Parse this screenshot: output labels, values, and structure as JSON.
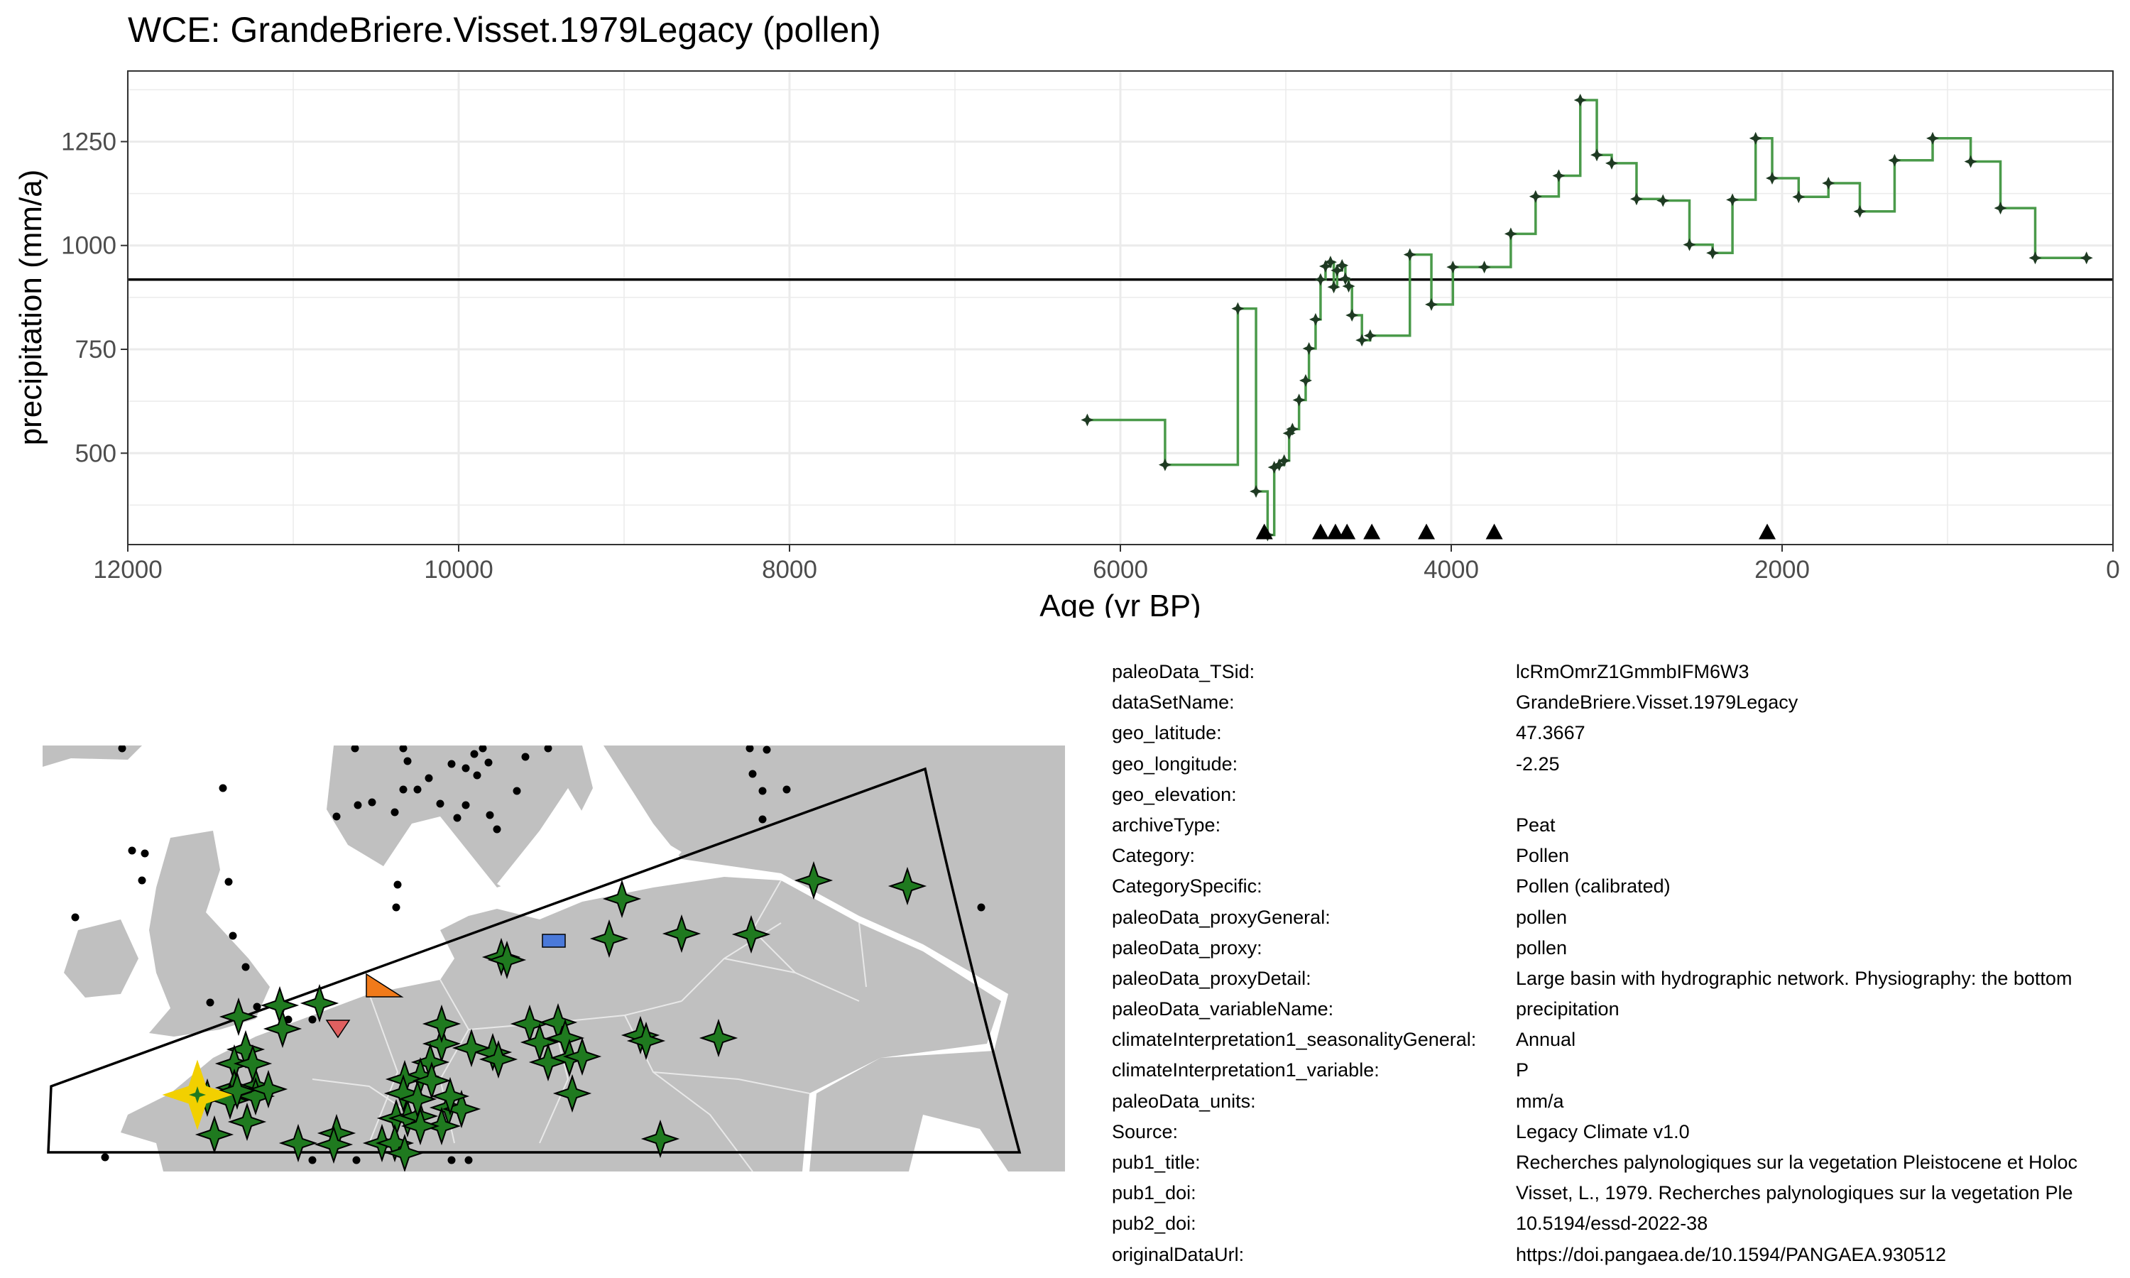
{
  "chart_data": {
    "type": "line",
    "title": "WCE: GrandeBriere.Visset.1979Legacy (pollen)",
    "xlabel": "Age (yr BP)",
    "ylabel": "precipitation (mm/a)",
    "xlim": [
      12000,
      0
    ],
    "ylim": [
      280,
      1420
    ],
    "x_ticks": [
      12000,
      10000,
      8000,
      6000,
      4000,
      2000,
      0
    ],
    "y_ticks": [
      500,
      750,
      1000,
      1250
    ],
    "grid": true,
    "step": true,
    "line_color": "#4a9a4a",
    "point_color": "#1e3a22",
    "reference_line": 918,
    "series": [
      {
        "name": "precipitation",
        "x": [
          6200,
          5730,
          5290,
          5180,
          5110,
          5070,
          5040,
          5010,
          4980,
          4960,
          4920,
          4880,
          4860,
          4820,
          4790,
          4760,
          4730,
          4710,
          4690,
          4660,
          4640,
          4620,
          4600,
          4540,
          4490,
          4250,
          4120,
          3990,
          3800,
          3640,
          3490,
          3350,
          3220,
          3120,
          3030,
          2880,
          2720,
          2560,
          2420,
          2300,
          2160,
          2060,
          1900,
          1720,
          1530,
          1320,
          1090,
          860,
          680,
          470,
          160
        ],
        "y": [
          580,
          472,
          848,
          408,
          303,
          466,
          472,
          482,
          548,
          558,
          628,
          675,
          752,
          822,
          918,
          950,
          960,
          900,
          940,
          952,
          920,
          902,
          832,
          772,
          783,
          978,
          858,
          948,
          948,
          1028,
          1118,
          1168,
          1350,
          1218,
          1198,
          1112,
          1108,
          1002,
          982,
          1110,
          1258,
          1162,
          1117,
          1150,
          1082,
          1205,
          1258,
          1202,
          1090,
          970,
          970
        ]
      }
    ],
    "markers": {
      "label": "triangle",
      "x": [
        5130,
        4790,
        4700,
        4630,
        4480,
        4150,
        3740,
        2090
      ]
    }
  },
  "map": {
    "symbol_colors": {
      "land": "#c0c0c0",
      "record": "#1f7a1f",
      "focus": "#f2d000",
      "square": "#4a79d9",
      "triangle_up": "#f07a1a",
      "triangle_down": "#e06060",
      "other": "#000000"
    }
  },
  "metadata": [
    {
      "key": "paleoData_TSid:",
      "value": "lcRmOmrZ1GmmbIFM6W3"
    },
    {
      "key": "dataSetName:",
      "value": "GrandeBriere.Visset.1979Legacy"
    },
    {
      "key": "geo_latitude:",
      "value": "47.3667"
    },
    {
      "key": "geo_longitude:",
      "value": "-2.25"
    },
    {
      "key": "geo_elevation:",
      "value": ""
    },
    {
      "key": "archiveType:",
      "value": "Peat"
    },
    {
      "key": "Category:",
      "value": "Pollen"
    },
    {
      "key": "CategorySpecific:",
      "value": "Pollen (calibrated)"
    },
    {
      "key": "paleoData_proxyGeneral:",
      "value": "pollen"
    },
    {
      "key": "paleoData_proxy:",
      "value": "pollen"
    },
    {
      "key": "paleoData_proxyDetail:",
      "value": "Large basin with hydrographic network. Physiography: the bottom"
    },
    {
      "key": "paleoData_variableName:",
      "value": "precipitation"
    },
    {
      "key": "climateInterpretation1_seasonalityGeneral:",
      "value": "Annual"
    },
    {
      "key": "climateInterpretation1_variable:",
      "value": "P"
    },
    {
      "key": "paleoData_units:",
      "value": "mm/a"
    },
    {
      "key": "Source:",
      "value": "Legacy Climate v1.0"
    },
    {
      "key": "pub1_title:",
      "value": "Recherches palynologiques sur la vegetation Pleistocene et Holoc"
    },
    {
      "key": "pub1_doi:",
      "value": "Visset, L., 1979. Recherches palynologiques sur la vegetation Ple"
    },
    {
      "key": "pub2_doi:",
      "value": "10.5194/essd-2022-38"
    },
    {
      "key": "originalDataUrl:",
      "value": "https://doi.pangaea.de/10.1594/PANGAEA.930512"
    }
  ]
}
